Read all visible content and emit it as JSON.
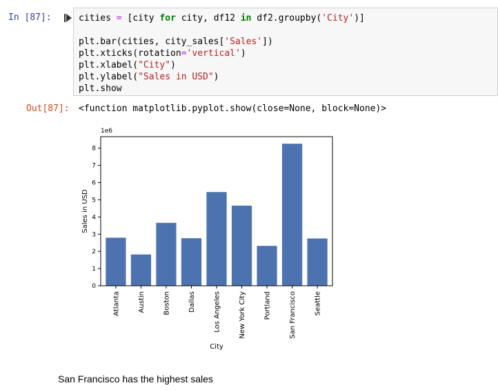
{
  "input_cell": {
    "prompt": "In [87]:",
    "code_lines": [
      [
        {
          "t": "cities "
        },
        {
          "t": "=",
          "c": "op"
        },
        {
          "t": " [city "
        },
        {
          "t": "for",
          "c": "kw"
        },
        {
          "t": " city, df12 "
        },
        {
          "t": "in",
          "c": "kw"
        },
        {
          "t": " df2.groupby("
        },
        {
          "t": "'City'",
          "c": "str"
        },
        {
          "t": ")]"
        }
      ],
      [],
      [
        {
          "t": "plt.bar(cities, city_sales["
        },
        {
          "t": "'Sales'",
          "c": "str"
        },
        {
          "t": "])"
        }
      ],
      [
        {
          "t": "plt.xticks(rotation"
        },
        {
          "t": "=",
          "c": "op"
        },
        {
          "t": "'vertical'",
          "c": "str"
        },
        {
          "t": ")"
        }
      ],
      [
        {
          "t": "plt.xlabel("
        },
        {
          "t": "\"City\"",
          "c": "str"
        },
        {
          "t": ")"
        }
      ],
      [
        {
          "t": "plt.ylabel("
        },
        {
          "t": "\"Sales in USD\"",
          "c": "str"
        },
        {
          "t": ")"
        }
      ],
      [
        {
          "t": "plt.show"
        }
      ]
    ]
  },
  "output_cell": {
    "prompt": "Out[87]:",
    "text": "<function matplotlib.pyplot.show(close=None, block=None)>"
  },
  "colors": {
    "bar": "#4c72b0",
    "in_prompt": "#303f9f",
    "out_prompt": "#d84315"
  },
  "chart_data": {
    "type": "bar",
    "categories": [
      "Atlanta",
      "Austin",
      "Boston",
      "Dallas",
      "Los Angeles",
      "New York City",
      "Portland",
      "San Francisco",
      "Seattle"
    ],
    "values": [
      2795000,
      1820000,
      3660000,
      2765000,
      5450000,
      4660000,
      2320000,
      8260000,
      2750000
    ],
    "xlabel": "City",
    "ylabel": "Sales in USD",
    "offset_text": "1e6",
    "yticks": [
      0,
      1,
      2,
      3,
      4,
      5,
      6,
      7,
      8
    ],
    "yunit": 1000000,
    "ylim": [
      0,
      8670000
    ]
  },
  "markdown_cell": {
    "text": "San Francisco has the highest sales"
  }
}
